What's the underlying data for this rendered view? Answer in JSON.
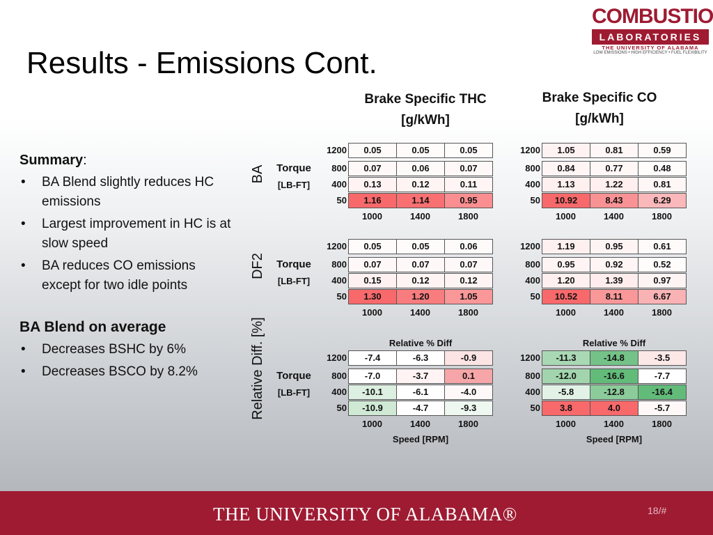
{
  "title": "Results - Emissions Cont.",
  "logo": {
    "line1": "COMBUSTION",
    "line2": "LABORATORIES",
    "line3": "THE UNIVERSITY OF ALABAMA",
    "line4": "LOW EMISSIONS • HIGH EFFICIENCY • FUEL FLEXIBILITY"
  },
  "summary": {
    "heading": "Summary",
    "heading_suffix": ":",
    "bullets": [
      "BA Blend slightly reduces HC emissions",
      "Largest improvement in HC is at slow speed",
      "BA reduces CO emissions except for two idle points"
    ],
    "heading2": "BA Blend on average",
    "bullets2": [
      "Decreases BSHC by 6%",
      "Decreases BSCO by 8.2%"
    ]
  },
  "headers": {
    "thc_line1": "Brake Specific THC",
    "thc_line2": "[g/kWh]",
    "co_line1": "Brake Specific CO",
    "co_line2": "[g/kWh]"
  },
  "side_labels": {
    "ba": "BA",
    "df2": "DF2",
    "rel": "Relative Diff. [%]",
    "torque": "Torque",
    "torque_unit": "[LB-FT]"
  },
  "row_labels": [
    "1200",
    "800",
    "400",
    "50"
  ],
  "col_labels": [
    "1000",
    "1400",
    "1800"
  ],
  "rel_caption": "Relative % Diff",
  "speed_caption": "Speed [RPM]",
  "tables": {
    "ba_thc": [
      [
        "0.05",
        "0.05",
        "0.05"
      ],
      [
        "0.07",
        "0.06",
        "0.07"
      ],
      [
        "0.13",
        "0.12",
        "0.11"
      ],
      [
        "1.16",
        "1.14",
        "0.95"
      ]
    ],
    "ba_co": [
      [
        "1.05",
        "0.81",
        "0.59"
      ],
      [
        "0.84",
        "0.77",
        "0.48"
      ],
      [
        "1.13",
        "1.22",
        "0.81"
      ],
      [
        "10.92",
        "8.43",
        "6.29"
      ]
    ],
    "df2_thc": [
      [
        "0.05",
        "0.05",
        "0.06"
      ],
      [
        "0.07",
        "0.07",
        "0.07"
      ],
      [
        "0.15",
        "0.12",
        "0.12"
      ],
      [
        "1.30",
        "1.20",
        "1.05"
      ]
    ],
    "df2_co": [
      [
        "1.19",
        "0.95",
        "0.61"
      ],
      [
        "0.95",
        "0.92",
        "0.52"
      ],
      [
        "1.20",
        "1.39",
        "0.97"
      ],
      [
        "10.52",
        "8.11",
        "6.67"
      ]
    ],
    "rel_thc": [
      [
        "-7.4",
        "-6.3",
        "-0.9"
      ],
      [
        "-7.0",
        "-3.7",
        "0.1"
      ],
      [
        "-10.1",
        "-6.1",
        "-4.0"
      ],
      [
        "-10.9",
        "-4.7",
        "-9.3"
      ]
    ],
    "rel_co": [
      [
        "-11.3",
        "-14.8",
        "-3.5"
      ],
      [
        "-12.0",
        "-16.6",
        "-7.7"
      ],
      [
        "-5.8",
        "-12.8",
        "-16.4"
      ],
      [
        "3.8",
        "4.0",
        "-5.7"
      ]
    ]
  },
  "colors": {
    "ba_thc": [
      [
        "#fffafa",
        "#fffbfb",
        "#fffcfc"
      ],
      [
        "#fff8f8",
        "#fffafa",
        "#fff8f8"
      ],
      [
        "#fff3f3",
        "#fff4f4",
        "#fff5f5"
      ],
      [
        "#f8696b",
        "#f87072",
        "#fa8e90"
      ]
    ],
    "ba_co": [
      [
        "#fff2f2",
        "#fff6f6",
        "#fffafa"
      ],
      [
        "#fff5f5",
        "#fff6f6",
        "#fffcfc"
      ],
      [
        "#fff0f0",
        "#ffefef",
        "#fff6f6"
      ],
      [
        "#f8696b",
        "#f99294",
        "#fbb8ba"
      ]
    ],
    "df2_thc": [
      [
        "#fffbfb",
        "#fffbfb",
        "#fffafa"
      ],
      [
        "#fff8f8",
        "#fff8f8",
        "#fff8f8"
      ],
      [
        "#fff1f1",
        "#fff4f4",
        "#fff4f4"
      ],
      [
        "#f8696b",
        "#f97c7e",
        "#fa9799"
      ]
    ],
    "df2_co": [
      [
        "#fff0f0",
        "#fff4f4",
        "#fffafa"
      ],
      [
        "#fff4f4",
        "#fff5f5",
        "#fffcfc"
      ],
      [
        "#fff0f0",
        "#ffeded",
        "#fff4f4"
      ],
      [
        "#f8696b",
        "#f99799",
        "#fab3b5"
      ]
    ],
    "rel_thc": [
      [
        "#ffffff",
        "#ffffff",
        "#fde4e4"
      ],
      [
        "#ffffff",
        "#fff3f3",
        "#f6a6a8"
      ],
      [
        "#dcefe0",
        "#ffffff",
        "#fff8f8"
      ],
      [
        "#cfe9d5",
        "#ffffff",
        "#eef7f0"
      ]
    ],
    "rel_co": [
      [
        "#a9d8b4",
        "#74c287",
        "#fde8e8"
      ],
      [
        "#a2d5ae",
        "#63bb7a",
        "#ffffff"
      ],
      [
        "#e3f2e6",
        "#8ccc9b",
        "#63bb7a"
      ],
      [
        "#f8696b",
        "#f8696b",
        "#fff8f8"
      ]
    ]
  },
  "footer": {
    "university": "THE UNIVERSITY OF ALABAMA®",
    "page": "18/#"
  }
}
